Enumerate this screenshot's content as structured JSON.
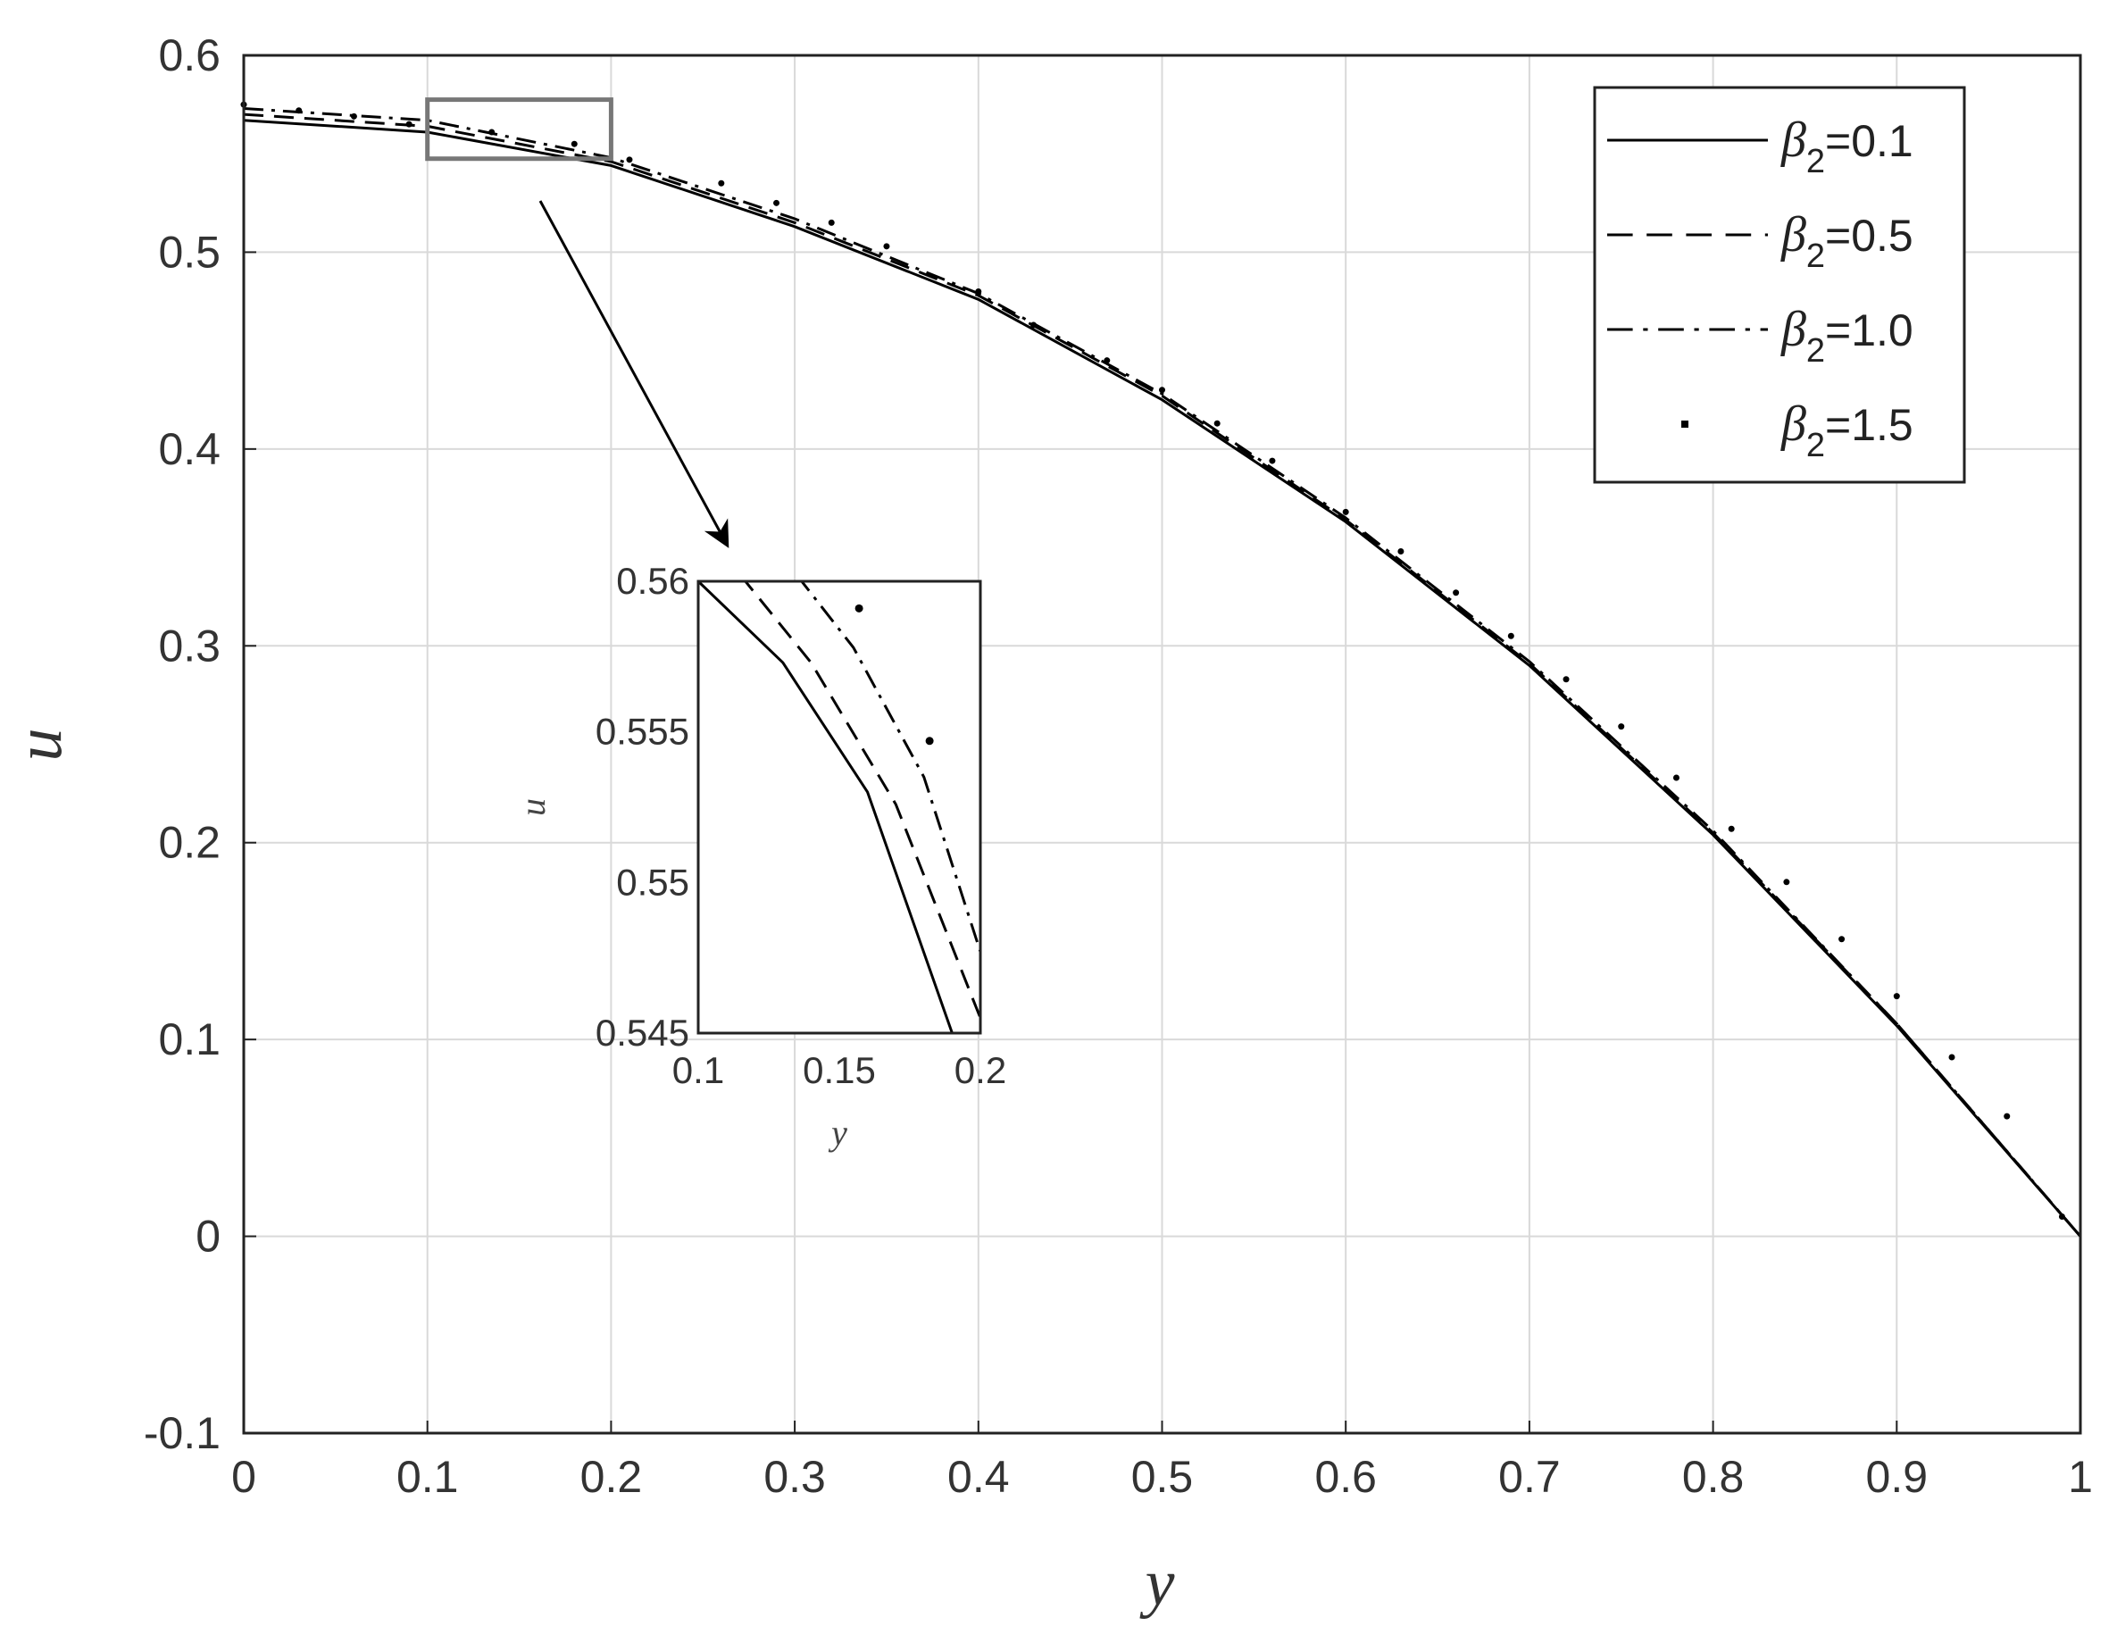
{
  "chart_data": {
    "type": "line",
    "title": "",
    "xlabel": "y",
    "ylabel": "u",
    "xlim": [
      0,
      1
    ],
    "ylim": [
      -0.1,
      0.6
    ],
    "xticks": [
      "0",
      "0.1",
      "0.2",
      "0.3",
      "0.4",
      "0.5",
      "0.6",
      "0.7",
      "0.8",
      "0.9",
      "1"
    ],
    "yticks": [
      "-0.1",
      "0",
      "0.1",
      "0.2",
      "0.3",
      "0.4",
      "0.5",
      "0.6"
    ],
    "grid": true,
    "legend_position": "top-right",
    "series": [
      {
        "name": "β2=0.1",
        "label_symbol": "β",
        "label_sub": "2",
        "label_value": "=0.1",
        "style": "solid",
        "x": [
          0,
          0.1,
          0.2,
          0.3,
          0.4,
          0.5,
          0.6,
          0.7,
          0.8,
          0.9,
          1.0
        ],
        "y": [
          0.567,
          0.561,
          0.544,
          0.513,
          0.476,
          0.425,
          0.363,
          0.29,
          0.204,
          0.107,
          0.0
        ]
      },
      {
        "name": "β2=0.5",
        "label_symbol": "β",
        "label_sub": "2",
        "label_value": "=0.5",
        "style": "dashed",
        "x": [
          0,
          0.1,
          0.2,
          0.3,
          0.4,
          0.5,
          0.6,
          0.7,
          0.8,
          0.9,
          1.0
        ],
        "y": [
          0.57,
          0.564,
          0.546,
          0.515,
          0.478,
          0.427,
          0.364,
          0.291,
          0.205,
          0.108,
          0.0
        ]
      },
      {
        "name": "β2=1.0",
        "label_symbol": "β",
        "label_sub": "2",
        "label_value": "=1.0",
        "style": "dashdot",
        "x": [
          0,
          0.1,
          0.2,
          0.3,
          0.4,
          0.5,
          0.6,
          0.7,
          0.8,
          0.9,
          1.0
        ],
        "y": [
          0.573,
          0.567,
          0.548,
          0.517,
          0.479,
          0.428,
          0.365,
          0.292,
          0.206,
          0.108,
          0.0
        ]
      },
      {
        "name": "β2=1.5",
        "label_symbol": "β",
        "label_sub": "2",
        "label_value": "=1.5",
        "style": "dots",
        "x": [
          0,
          0.03,
          0.06,
          0.09,
          0.135,
          0.18,
          0.21,
          0.26,
          0.29,
          0.32,
          0.35,
          0.4,
          0.43,
          0.47,
          0.5,
          0.53,
          0.56,
          0.6,
          0.63,
          0.66,
          0.69,
          0.72,
          0.75,
          0.78,
          0.81,
          0.84,
          0.87,
          0.9,
          0.93,
          0.96,
          0.99
        ],
        "y": [
          0.575,
          0.572,
          0.569,
          0.565,
          0.561,
          0.555,
          0.547,
          0.535,
          0.525,
          0.515,
          0.503,
          0.48,
          0.463,
          0.445,
          0.43,
          0.413,
          0.394,
          0.368,
          0.348,
          0.327,
          0.305,
          0.283,
          0.259,
          0.233,
          0.207,
          0.18,
          0.151,
          0.122,
          0.091,
          0.061,
          0.01
        ]
      }
    ],
    "zoom_box": {
      "xlim": [
        0.1,
        0.2
      ],
      "ylim": [
        0.5475,
        0.5775
      ]
    },
    "inset": {
      "type": "line",
      "xlabel": "y",
      "ylabel": "u",
      "xlim": [
        0.1,
        0.2
      ],
      "ylim": [
        0.545,
        0.56
      ],
      "xticks": [
        "0.1",
        "0.15",
        "0.2"
      ],
      "yticks": [
        "0.545",
        "0.55",
        "0.555",
        "0.56"
      ],
      "series": [
        {
          "name": "β2=0.1",
          "style": "solid",
          "x": [
            0.1,
            0.13,
            0.16,
            0.19
          ],
          "y": [
            0.56,
            0.5573,
            0.553,
            0.545
          ]
        },
        {
          "name": "β2=0.5",
          "style": "dashed",
          "x": [
            0.115,
            0.14,
            0.17,
            0.2
          ],
          "y": [
            0.5602,
            0.5573,
            0.5526,
            0.5455
          ]
        },
        {
          "name": "β2=1.0",
          "style": "dashdot",
          "x": [
            0.135,
            0.155,
            0.18,
            0.2
          ],
          "y": [
            0.5602,
            0.5578,
            0.5535,
            0.5477
          ]
        },
        {
          "name": "β2=1.5",
          "style": "dots",
          "x": [
            0.157,
            0.182
          ],
          "y": [
            0.5591,
            0.5547
          ]
        }
      ]
    }
  }
}
